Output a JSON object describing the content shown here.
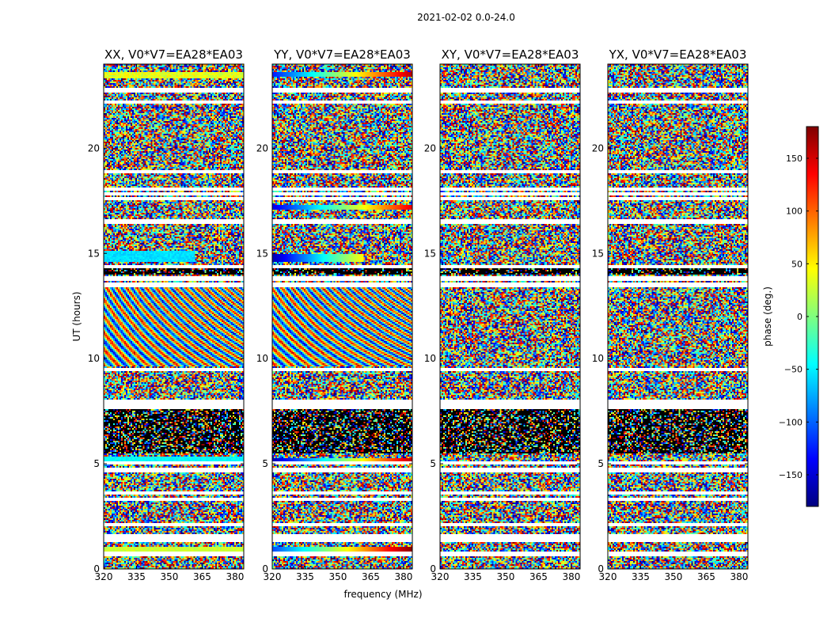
{
  "chart_data": {
    "type": "heatmap",
    "suptitle": "2021-02-02 0.0-24.0",
    "xlabel": "frequency (MHz)",
    "ylabel": "UT (hours)",
    "xlim": [
      320,
      384
    ],
    "ylim": [
      0,
      24
    ],
    "xticks": [
      320,
      335,
      350,
      365,
      380
    ],
    "yticks": [
      0,
      5,
      10,
      15,
      20
    ],
    "panels": [
      {
        "title": "XX, V0*V7=EA28*EA03",
        "style": "xx"
      },
      {
        "title": "YY, V0*V7=EA28*EA03",
        "style": "yy"
      },
      {
        "title": "XY, V0*V7=EA28*EA03",
        "style": "cross"
      },
      {
        "title": "YX, V0*V7=EA28*EA03",
        "style": "cross"
      }
    ],
    "colorbar": {
      "label": "phase (deg.)",
      "range": [
        -180,
        180
      ],
      "ticks": [
        150,
        100,
        50,
        0,
        -50,
        -100,
        -150
      ],
      "tick_labels": [
        "150",
        "100",
        "50",
        "0",
        "−50",
        "−100",
        "−150"
      ],
      "colormap": [
        "#00007f",
        "#0000ff",
        "#007fff",
        "#00ffff",
        "#7fff7f",
        "#ffff00",
        "#ff7f00",
        "#ff0000",
        "#7f0000"
      ]
    },
    "flagged_hours": [
      0.7,
      1.35,
      1.55,
      2.1,
      3.3,
      3.6,
      4.7,
      5.05,
      7.7,
      7.95,
      9.5,
      13.5,
      13.8,
      14.35,
      16.5,
      17.6,
      17.85,
      18.05,
      18.9,
      22.2,
      22.75
    ]
  }
}
